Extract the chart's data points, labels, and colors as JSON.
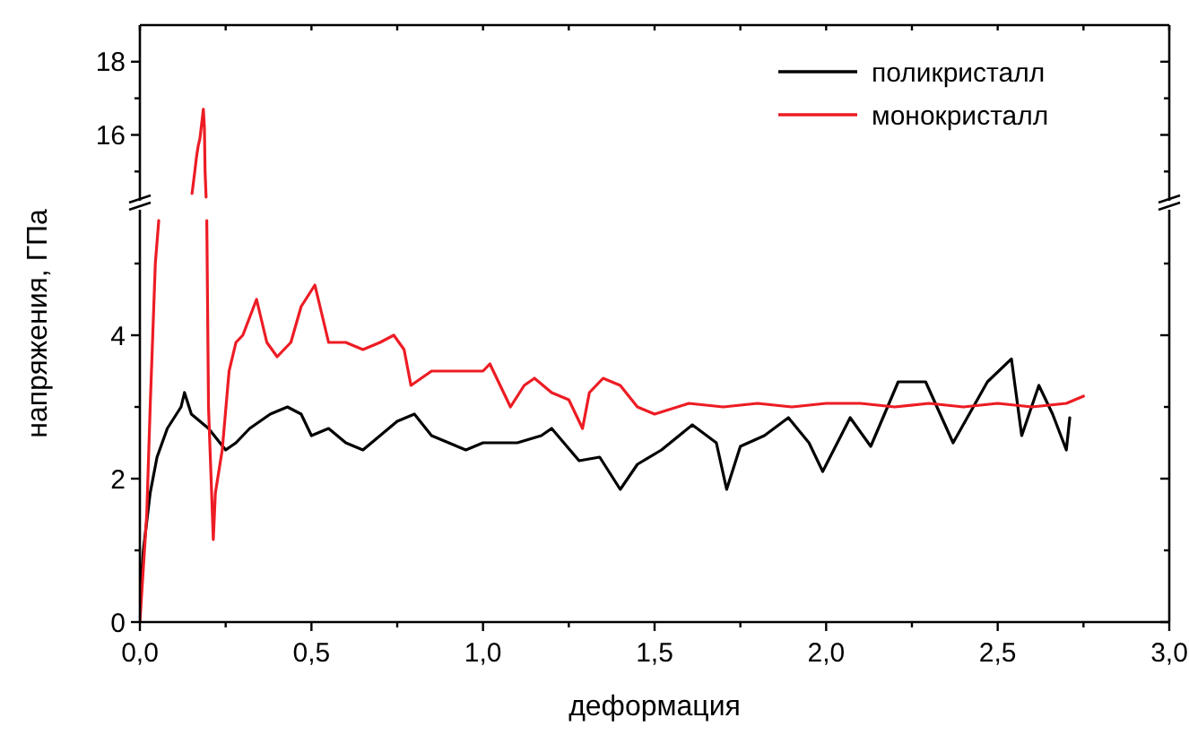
{
  "chart_data": [
    {
      "type": "line",
      "xlim": [
        0,
        3
      ],
      "ylim": [
        14.2,
        19
      ],
      "xticks": [
        {
          "value": 0,
          "label": null
        },
        {
          "value": 0.25,
          "label": null
        },
        {
          "value": 0.5,
          "label": null
        },
        {
          "value": 0.75,
          "label": null
        },
        {
          "value": 1,
          "label": null
        },
        {
          "value": 1.25,
          "label": null
        },
        {
          "value": 1.5,
          "label": null
        },
        {
          "value": 1.75,
          "label": null
        },
        {
          "value": 2,
          "label": null
        },
        {
          "value": 2.25,
          "label": null
        },
        {
          "value": 2.5,
          "label": null
        },
        {
          "value": 2.75,
          "label": null
        },
        {
          "value": 3,
          "label": null
        }
      ],
      "yticks": [
        {
          "value": 15,
          "label": null
        },
        16,
        {
          "value": 17,
          "label": null
        },
        18
      ],
      "tick_labels": "y",
      "series": [
        {
          "color": "#ed1c24",
          "x": [
            0.152,
            0.16,
            0.165,
            0.17,
            0.175,
            0.18,
            0.185,
            0.188,
            0.19,
            0.193
          ],
          "values": [
            14.4,
            15.0,
            15.4,
            15.7,
            15.9,
            16.3,
            16.7,
            16.2,
            15.0,
            14.3
          ]
        }
      ]
    },
    {
      "type": "line",
      "xlabel": "деформация",
      "ylabel": "напряжения, ГПа",
      "xlim": [
        0,
        3
      ],
      "ylim": [
        0,
        5.75
      ],
      "xticks": [
        {
          "value": 0,
          "label": "0,0"
        },
        {
          "value": 0.25,
          "label": null
        },
        {
          "value": 0.5,
          "label": "0,5"
        },
        {
          "value": 0.75,
          "label": null
        },
        {
          "value": 1,
          "label": "1,0"
        },
        {
          "value": 1.25,
          "label": null
        },
        {
          "value": 1.5,
          "label": "1,5"
        },
        {
          "value": 1.75,
          "label": null
        },
        {
          "value": 2,
          "label": "2,0"
        },
        {
          "value": 2.25,
          "label": null
        },
        {
          "value": 2.5,
          "label": "2,5"
        },
        {
          "value": 2.75,
          "label": null
        },
        {
          "value": 3,
          "label": "3,0"
        }
      ],
      "yticks": [
        0,
        {
          "value": 1,
          "label": null
        },
        2,
        {
          "value": 3,
          "label": null
        },
        4,
        {
          "value": 5,
          "label": null
        }
      ],
      "legend": "top right",
      "series": [
        {
          "name": "поликристалл",
          "color": "#000000",
          "x": [
            0,
            0.01,
            0.03,
            0.05,
            0.08,
            0.12,
            0.13,
            0.15,
            0.2,
            0.25,
            0.28,
            0.32,
            0.38,
            0.43,
            0.47,
            0.5,
            0.55,
            0.6,
            0.65,
            0.7,
            0.75,
            0.8,
            0.85,
            0.9,
            0.95,
            1.0,
            1.05,
            1.1,
            1.17,
            1.2,
            1.28,
            1.34,
            1.4,
            1.45,
            1.52,
            1.61,
            1.68,
            1.71,
            1.75,
            1.82,
            1.89,
            1.95,
            1.99,
            2.07,
            2.13,
            2.21,
            2.29,
            2.37,
            2.47,
            2.54,
            2.57,
            2.62,
            2.66,
            2.7,
            2.71
          ],
          "values": [
            0.3,
            1.0,
            1.8,
            2.3,
            2.7,
            3.0,
            3.2,
            2.9,
            2.7,
            2.4,
            2.5,
            2.7,
            2.9,
            3.0,
            2.9,
            2.6,
            2.7,
            2.5,
            2.4,
            2.6,
            2.8,
            2.9,
            2.6,
            2.5,
            2.4,
            2.5,
            2.5,
            2.5,
            2.6,
            2.7,
            2.25,
            2.3,
            1.85,
            2.2,
            2.4,
            2.75,
            2.5,
            1.85,
            2.45,
            2.6,
            2.85,
            2.5,
            2.1,
            2.85,
            2.45,
            3.35,
            3.35,
            2.5,
            3.35,
            3.67,
            2.6,
            3.3,
            2.9,
            2.4,
            2.85
          ]
        },
        {
          "name": "монокристалл",
          "color": "#ed1c24",
          "x": [
            0,
            0.02,
            0.03,
            0.045,
            0.055,
            0.056,
            0.195,
            0.2,
            0.214,
            0.22,
            0.24,
            0.26,
            0.28,
            0.3,
            0.34,
            0.37,
            0.4,
            0.44,
            0.47,
            0.51,
            0.53,
            0.55,
            0.6,
            0.65,
            0.7,
            0.74,
            0.77,
            0.79,
            0.85,
            0.9,
            0.95,
            1.0,
            1.02,
            1.06,
            1.08,
            1.12,
            1.15,
            1.2,
            1.25,
            1.29,
            1.31,
            1.35,
            1.4,
            1.45,
            1.5,
            1.6,
            1.7,
            1.8,
            1.9,
            2.0,
            2.1,
            2.2,
            2.3,
            2.4,
            2.5,
            2.6,
            2.7,
            2.75
          ],
          "values": [
            0,
            1.5,
            3.0,
            5.0,
            5.6,
            null,
            5.6,
            3.0,
            1.15,
            1.8,
            2.4,
            3.5,
            3.9,
            4.0,
            4.5,
            3.9,
            3.7,
            3.9,
            4.4,
            4.7,
            4.3,
            3.9,
            3.9,
            3.8,
            3.9,
            4.0,
            3.8,
            3.3,
            3.5,
            3.5,
            3.5,
            3.5,
            3.6,
            3.2,
            3.0,
            3.3,
            3.4,
            3.2,
            3.1,
            2.7,
            3.2,
            3.4,
            3.3,
            3.0,
            2.9,
            3.05,
            3.0,
            3.05,
            3.0,
            3.05,
            3.05,
            3.0,
            3.05,
            3.0,
            3.05,
            3.0,
            3.05,
            3.15
          ]
        }
      ]
    }
  ]
}
